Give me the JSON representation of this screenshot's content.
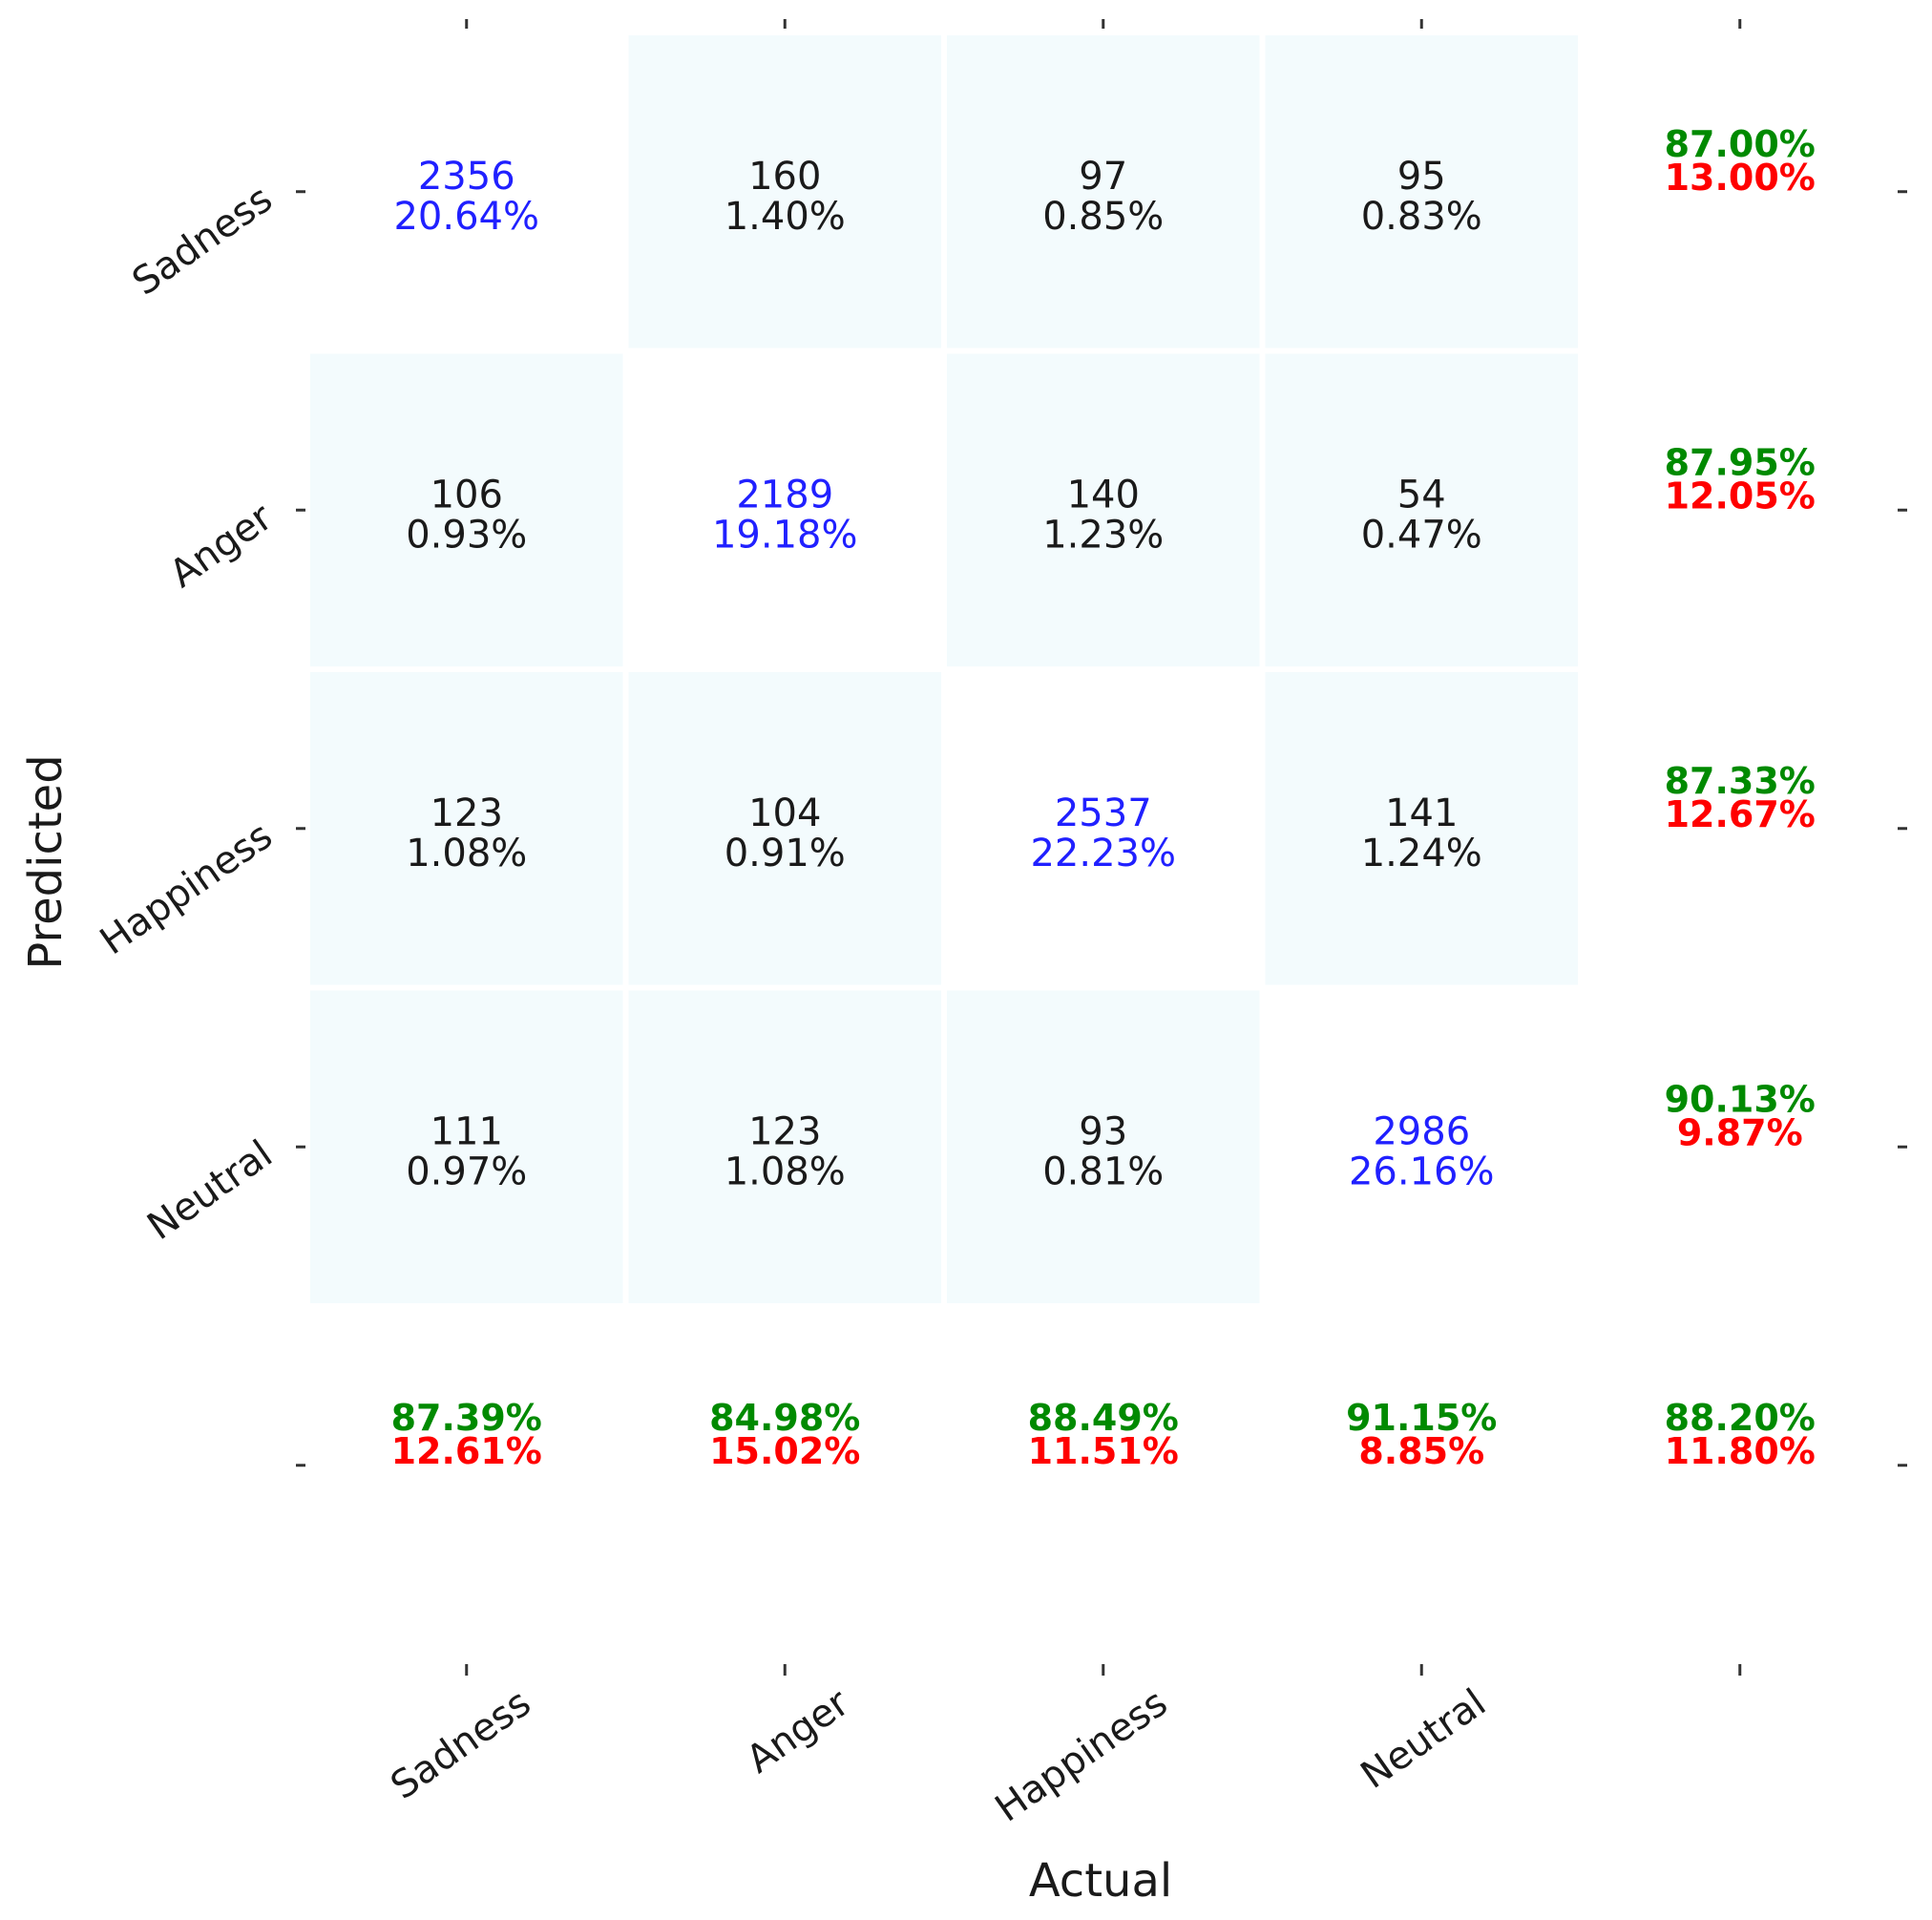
{
  "chart_data": {
    "type": "heatmap",
    "title": "",
    "xlabel": "Actual",
    "ylabel": "Predicted",
    "rows": [
      "Sadness",
      "Anger",
      "Happiness",
      "Neutral"
    ],
    "cols": [
      "Sadness",
      "Anger",
      "Happiness",
      "Neutral"
    ],
    "counts": [
      [
        2356,
        160,
        97,
        95
      ],
      [
        106,
        2189,
        140,
        54
      ],
      [
        123,
        104,
        2537,
        141
      ],
      [
        111,
        123,
        93,
        2986
      ]
    ],
    "percentages": [
      [
        "20.64%",
        "1.40%",
        "0.85%",
        "0.83%"
      ],
      [
        "0.93%",
        "19.18%",
        "1.23%",
        "0.47%"
      ],
      [
        "1.08%",
        "0.91%",
        "22.23%",
        "1.24%"
      ],
      [
        "0.97%",
        "1.08%",
        "0.81%",
        "26.16%"
      ]
    ],
    "row_summary": [
      {
        "correct": "87.00%",
        "error": "13.00%"
      },
      {
        "correct": "87.95%",
        "error": "12.05%"
      },
      {
        "correct": "87.33%",
        "error": "12.67%"
      },
      {
        "correct": "90.13%",
        "error": "9.87%"
      }
    ],
    "col_summary": [
      {
        "correct": "87.39%",
        "error": "12.61%"
      },
      {
        "correct": "84.98%",
        "error": "15.02%"
      },
      {
        "correct": "88.49%",
        "error": "11.51%"
      },
      {
        "correct": "91.15%",
        "error": "8.85%"
      }
    ],
    "overall": {
      "correct": "88.20%",
      "error": "11.80%"
    },
    "colors": {
      "diagonal_fill": "#ffffff",
      "offdiag_fill": "#f3fbfd",
      "diagonal_text": "#2020ff",
      "offdiag_text": "#1a1a1a",
      "correct_text": "#008a00",
      "error_text": "#ff0000"
    }
  }
}
